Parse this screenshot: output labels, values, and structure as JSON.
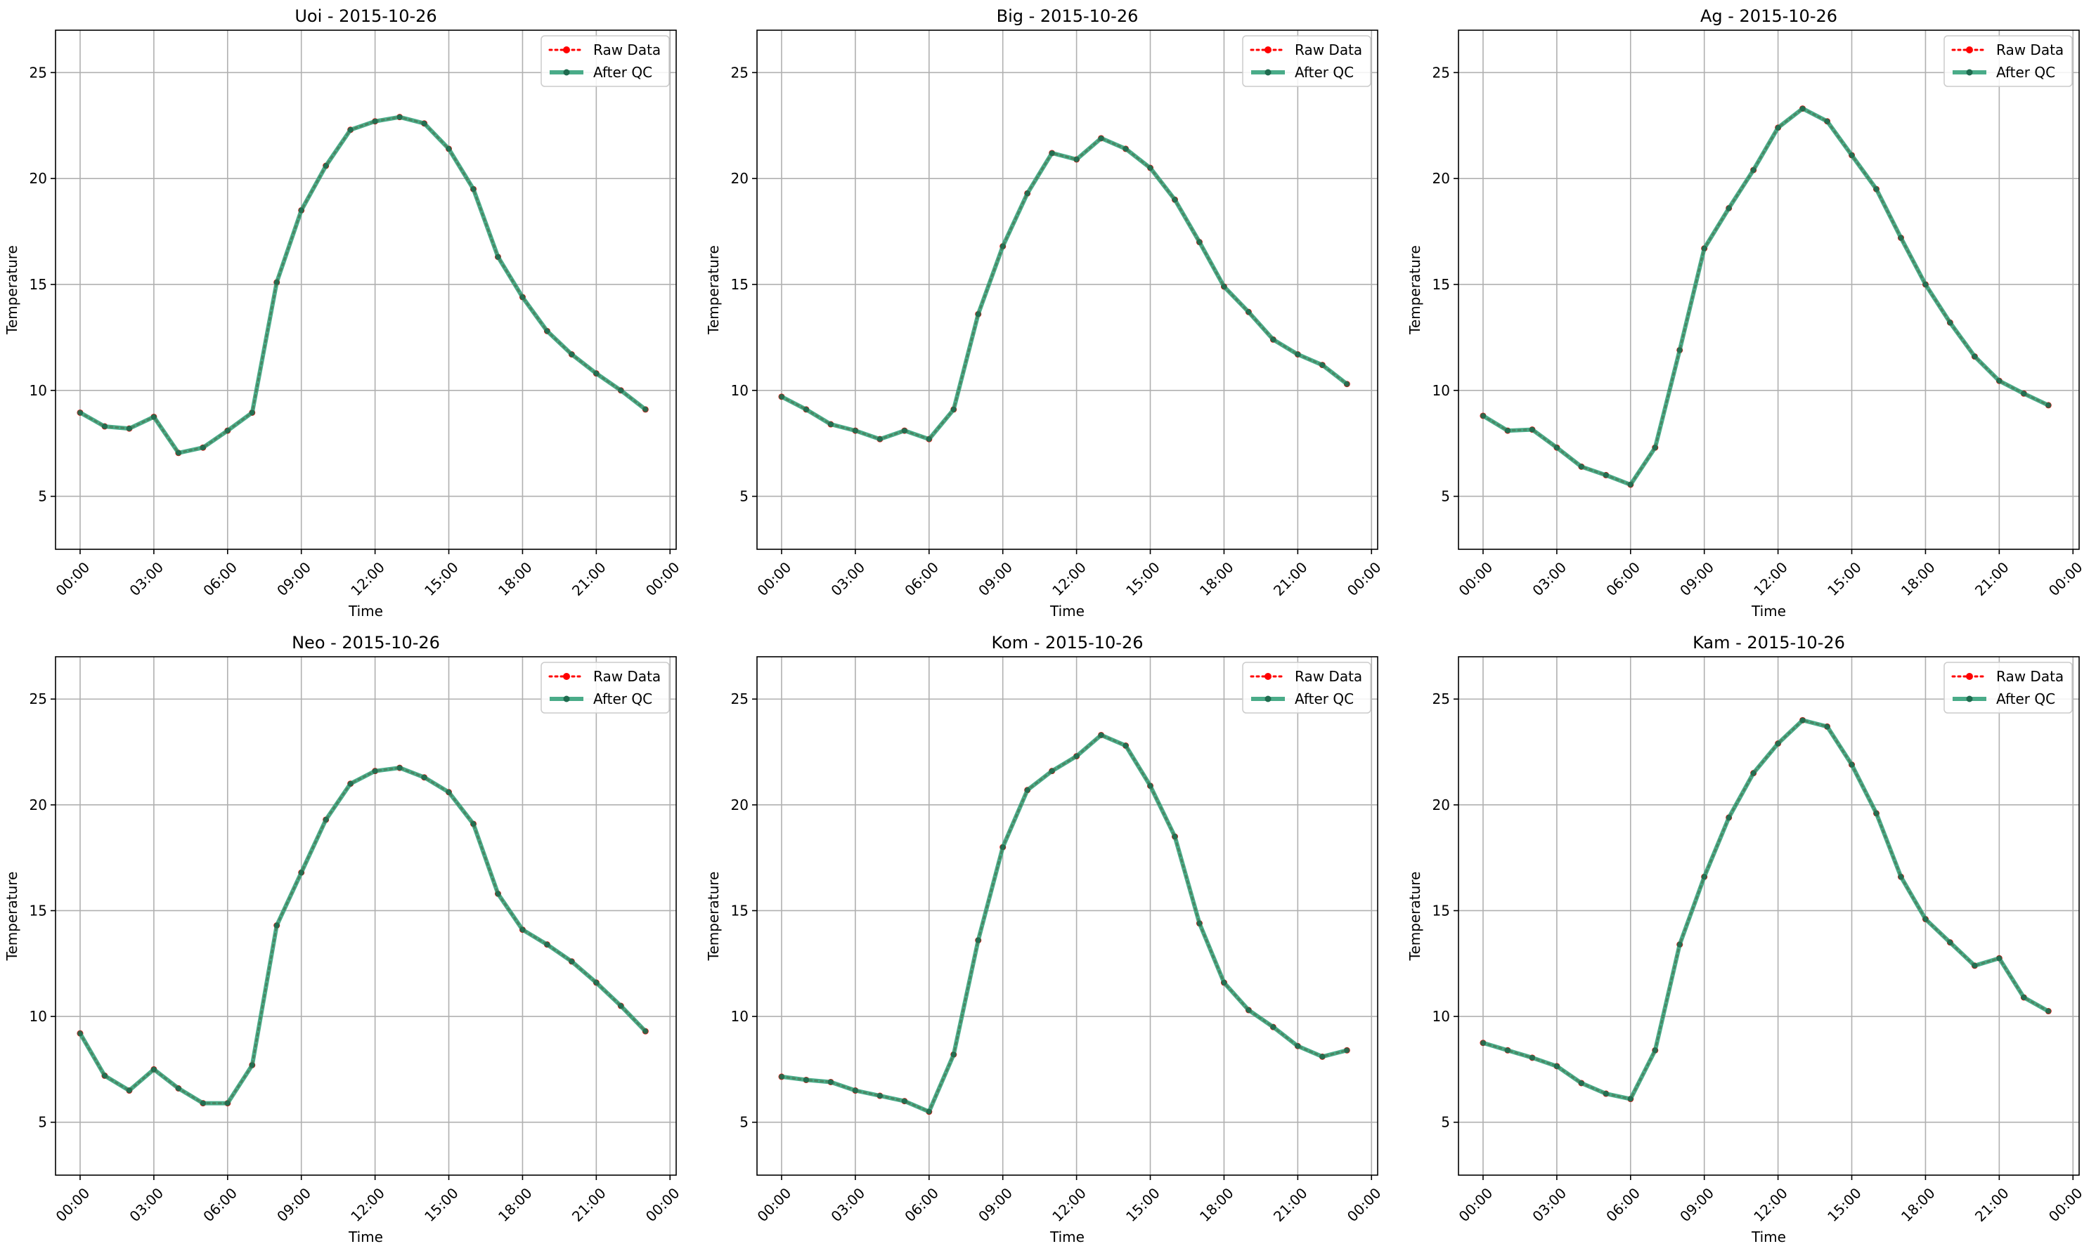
{
  "legend_labels": {
    "raw": "Raw Data",
    "qc": "After QC"
  },
  "colors": {
    "raw": "#ff0000",
    "qc": "#2a9d74",
    "grid": "#b0b0b0",
    "axis": "#000000"
  },
  "chart_data": [
    {
      "type": "line",
      "title": "Uoi - 2015-10-26",
      "xlabel": "Time",
      "ylabel": "Temperature",
      "x_ticks": [
        "00:00",
        "03:00",
        "06:00",
        "09:00",
        "12:00",
        "15:00",
        "18:00",
        "21:00",
        "00:00"
      ],
      "y_ticks": [
        5,
        10,
        15,
        20,
        25
      ],
      "ylim": [
        2.5,
        27
      ],
      "xlim": [
        "2015-10-25 23:00",
        "2015-10-27 00:15"
      ],
      "grid": true,
      "legend_position": "upper right",
      "x": [
        "00:00",
        "01:00",
        "02:00",
        "03:00",
        "04:00",
        "05:00",
        "06:00",
        "07:00",
        "08:00",
        "09:00",
        "10:00",
        "11:00",
        "12:00",
        "13:00",
        "14:00",
        "15:00",
        "16:00",
        "17:00",
        "18:00",
        "19:00",
        "20:00",
        "21:00",
        "22:00",
        "23:00"
      ],
      "series": [
        {
          "name": "Raw Data",
          "values": [
            8.95,
            8.3,
            8.2,
            8.75,
            7.05,
            7.3,
            8.1,
            8.95,
            15.1,
            18.5,
            20.6,
            22.3,
            22.7,
            22.9,
            22.6,
            21.4,
            19.5,
            16.3,
            14.4,
            12.8,
            11.7,
            10.8,
            10.0,
            9.1
          ]
        },
        {
          "name": "After QC",
          "values": [
            8.95,
            8.3,
            8.2,
            8.75,
            7.05,
            7.3,
            8.1,
            8.95,
            15.1,
            18.5,
            20.6,
            22.3,
            22.7,
            22.9,
            22.6,
            21.4,
            19.5,
            16.3,
            14.4,
            12.8,
            11.7,
            10.8,
            10.0,
            9.1
          ]
        }
      ]
    },
    {
      "type": "line",
      "title": "Big - 2015-10-26",
      "xlabel": "Time",
      "ylabel": "Temperature",
      "x_ticks": [
        "00:00",
        "03:00",
        "06:00",
        "09:00",
        "12:00",
        "15:00",
        "18:00",
        "21:00",
        "00:00"
      ],
      "y_ticks": [
        5,
        10,
        15,
        20,
        25
      ],
      "ylim": [
        2.5,
        27
      ],
      "xlim": [
        "2015-10-25 23:00",
        "2015-10-27 00:15"
      ],
      "grid": true,
      "legend_position": "upper right",
      "x": [
        "00:00",
        "01:00",
        "02:00",
        "03:00",
        "04:00",
        "05:00",
        "06:00",
        "07:00",
        "08:00",
        "09:00",
        "10:00",
        "11:00",
        "12:00",
        "13:00",
        "14:00",
        "15:00",
        "16:00",
        "17:00",
        "18:00",
        "19:00",
        "20:00",
        "21:00",
        "22:00",
        "23:00"
      ],
      "series": [
        {
          "name": "Raw Data",
          "values": [
            9.7,
            9.1,
            8.4,
            8.1,
            7.7,
            8.1,
            7.7,
            9.1,
            13.6,
            16.8,
            19.3,
            21.2,
            20.9,
            21.9,
            21.4,
            20.5,
            19.0,
            17.0,
            14.9,
            13.7,
            12.4,
            11.7,
            11.2,
            10.3
          ]
        },
        {
          "name": "After QC",
          "values": [
            9.7,
            9.1,
            8.4,
            8.1,
            7.7,
            8.1,
            7.7,
            9.1,
            13.6,
            16.8,
            19.3,
            21.2,
            20.9,
            21.9,
            21.4,
            20.5,
            19.0,
            17.0,
            14.9,
            13.7,
            12.4,
            11.7,
            11.2,
            10.3
          ]
        }
      ]
    },
    {
      "type": "line",
      "title": "Ag - 2015-10-26",
      "xlabel": "Time",
      "ylabel": "Temperature",
      "x_ticks": [
        "00:00",
        "03:00",
        "06:00",
        "09:00",
        "12:00",
        "15:00",
        "18:00",
        "21:00",
        "00:00"
      ],
      "y_ticks": [
        5,
        10,
        15,
        20,
        25
      ],
      "ylim": [
        2.5,
        27
      ],
      "xlim": [
        "2015-10-25 23:00",
        "2015-10-27 00:15"
      ],
      "grid": true,
      "legend_position": "upper right",
      "x": [
        "00:00",
        "01:00",
        "02:00",
        "03:00",
        "04:00",
        "05:00",
        "06:00",
        "07:00",
        "08:00",
        "09:00",
        "10:00",
        "11:00",
        "12:00",
        "13:00",
        "14:00",
        "15:00",
        "16:00",
        "17:00",
        "18:00",
        "19:00",
        "20:00",
        "21:00",
        "22:00",
        "23:00"
      ],
      "series": [
        {
          "name": "Raw Data",
          "values": [
            8.8,
            8.1,
            8.15,
            7.3,
            6.4,
            6.0,
            5.55,
            7.3,
            11.9,
            16.7,
            18.6,
            20.4,
            22.4,
            23.3,
            22.7,
            21.1,
            19.5,
            17.2,
            15.0,
            13.2,
            11.6,
            10.45,
            9.85,
            9.3
          ]
        },
        {
          "name": "After QC",
          "values": [
            8.8,
            8.1,
            8.15,
            7.3,
            6.4,
            6.0,
            5.55,
            7.3,
            11.9,
            16.7,
            18.6,
            20.4,
            22.4,
            23.3,
            22.7,
            21.1,
            19.5,
            17.2,
            15.0,
            13.2,
            11.6,
            10.45,
            9.85,
            9.3
          ]
        }
      ]
    },
    {
      "type": "line",
      "title": "Neo - 2015-10-26",
      "xlabel": "Time",
      "ylabel": "Temperature",
      "x_ticks": [
        "00:00",
        "03:00",
        "06:00",
        "09:00",
        "12:00",
        "15:00",
        "18:00",
        "21:00",
        "00:00"
      ],
      "y_ticks": [
        5,
        10,
        15,
        20,
        25
      ],
      "ylim": [
        2.5,
        27
      ],
      "xlim": [
        "2015-10-25 23:00",
        "2015-10-27 00:15"
      ],
      "grid": true,
      "legend_position": "upper right",
      "x": [
        "00:00",
        "01:00",
        "02:00",
        "03:00",
        "04:00",
        "05:00",
        "06:00",
        "07:00",
        "08:00",
        "09:00",
        "10:00",
        "11:00",
        "12:00",
        "13:00",
        "14:00",
        "15:00",
        "16:00",
        "17:00",
        "18:00",
        "19:00",
        "20:00",
        "21:00",
        "22:00",
        "23:00"
      ],
      "series": [
        {
          "name": "Raw Data",
          "values": [
            9.2,
            7.2,
            6.5,
            7.5,
            6.6,
            5.9,
            5.9,
            7.7,
            14.3,
            16.8,
            19.3,
            21.0,
            21.6,
            21.75,
            21.3,
            20.6,
            19.1,
            15.8,
            14.1,
            13.4,
            12.6,
            11.6,
            10.5,
            9.3
          ]
        },
        {
          "name": "After QC",
          "values": [
            9.2,
            7.2,
            6.5,
            7.5,
            6.6,
            5.9,
            5.9,
            7.7,
            14.3,
            16.8,
            19.3,
            21.0,
            21.6,
            21.75,
            21.3,
            20.6,
            19.1,
            15.8,
            14.1,
            13.4,
            12.6,
            11.6,
            10.5,
            9.3
          ]
        }
      ]
    },
    {
      "type": "line",
      "title": "Kom - 2015-10-26",
      "xlabel": "Time",
      "ylabel": "Temperature",
      "x_ticks": [
        "00:00",
        "03:00",
        "06:00",
        "09:00",
        "12:00",
        "15:00",
        "18:00",
        "21:00",
        "00:00"
      ],
      "y_ticks": [
        5,
        10,
        15,
        20,
        25
      ],
      "ylim": [
        2.5,
        27
      ],
      "xlim": [
        "2015-10-25 23:00",
        "2015-10-27 00:15"
      ],
      "grid": true,
      "legend_position": "upper right",
      "x": [
        "00:00",
        "01:00",
        "02:00",
        "03:00",
        "04:00",
        "05:00",
        "06:00",
        "07:00",
        "08:00",
        "09:00",
        "10:00",
        "11:00",
        "12:00",
        "13:00",
        "14:00",
        "15:00",
        "16:00",
        "17:00",
        "18:00",
        "19:00",
        "20:00",
        "21:00",
        "22:00",
        "23:00"
      ],
      "series": [
        {
          "name": "Raw Data",
          "values": [
            7.15,
            7.0,
            6.9,
            6.5,
            6.25,
            6.0,
            5.5,
            8.2,
            13.6,
            18.0,
            20.7,
            21.6,
            22.3,
            23.3,
            22.8,
            20.9,
            18.5,
            14.4,
            11.6,
            10.3,
            9.5,
            8.6,
            8.1,
            8.4
          ]
        },
        {
          "name": "After QC",
          "values": [
            7.15,
            7.0,
            6.9,
            6.5,
            6.25,
            6.0,
            5.5,
            8.2,
            13.6,
            18.0,
            20.7,
            21.6,
            22.3,
            23.3,
            22.8,
            20.9,
            18.5,
            14.4,
            11.6,
            10.3,
            9.5,
            8.6,
            8.1,
            8.4
          ]
        }
      ]
    },
    {
      "type": "line",
      "title": "Kam - 2015-10-26",
      "xlabel": "Time",
      "ylabel": "Temperature",
      "x_ticks": [
        "00:00",
        "03:00",
        "06:00",
        "09:00",
        "12:00",
        "15:00",
        "18:00",
        "21:00",
        "00:00"
      ],
      "y_ticks": [
        5,
        10,
        15,
        20,
        25
      ],
      "ylim": [
        2.5,
        27
      ],
      "xlim": [
        "2015-10-25 23:00",
        "2015-10-27 00:15"
      ],
      "grid": true,
      "legend_position": "upper right",
      "x": [
        "00:00",
        "01:00",
        "02:00",
        "03:00",
        "04:00",
        "05:00",
        "06:00",
        "07:00",
        "08:00",
        "09:00",
        "10:00",
        "11:00",
        "12:00",
        "13:00",
        "14:00",
        "15:00",
        "16:00",
        "17:00",
        "18:00",
        "19:00",
        "20:00",
        "21:00",
        "22:00",
        "23:00"
      ],
      "series": [
        {
          "name": "Raw Data",
          "values": [
            8.75,
            8.4,
            8.05,
            7.65,
            6.85,
            6.35,
            6.1,
            8.4,
            13.4,
            16.6,
            19.4,
            21.5,
            22.9,
            24.0,
            23.7,
            21.9,
            19.6,
            16.6,
            14.6,
            13.5,
            12.4,
            12.75,
            10.9,
            10.25
          ]
        },
        {
          "name": "After QC",
          "values": [
            8.75,
            8.4,
            8.05,
            7.65,
            6.85,
            6.35,
            6.1,
            8.4,
            13.4,
            16.6,
            19.4,
            21.5,
            22.9,
            24.0,
            23.7,
            21.9,
            19.6,
            16.6,
            14.6,
            13.5,
            12.4,
            12.75,
            10.9,
            10.25
          ]
        }
      ]
    }
  ]
}
